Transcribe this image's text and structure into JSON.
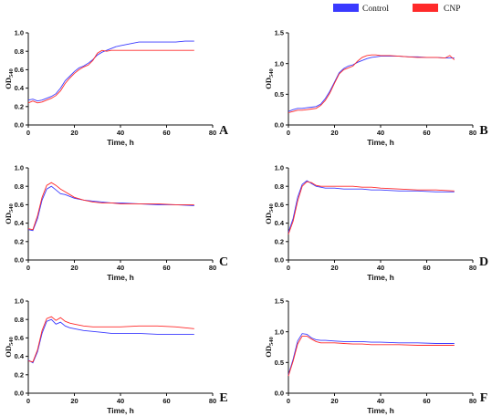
{
  "legend": [
    {
      "name": "Control",
      "color": "#3a3aff"
    },
    {
      "name": "CNP",
      "color": "#ff2a2a"
    }
  ],
  "chart_data": [
    {
      "type": "line",
      "panel": "A",
      "xlabel": "Time, h",
      "ylabel": "OD540",
      "xlim": [
        0,
        80
      ],
      "ylim": [
        0,
        1.0
      ],
      "xticks": [
        0,
        20,
        40,
        60,
        80
      ],
      "yticks": [
        "0.0",
        "0.2",
        "0.4",
        "0.6",
        "0.8",
        "1.0"
      ],
      "series": [
        {
          "name": "Control",
          "color": "#3a3aff",
          "x": [
            0,
            2,
            4,
            6,
            8,
            10,
            12,
            14,
            16,
            18,
            20,
            22,
            24,
            26,
            28,
            30,
            32,
            34,
            36,
            38,
            40,
            44,
            48,
            52,
            56,
            60,
            64,
            68,
            72
          ],
          "y": [
            0.27,
            0.28,
            0.26,
            0.27,
            0.29,
            0.31,
            0.34,
            0.4,
            0.48,
            0.53,
            0.58,
            0.62,
            0.64,
            0.67,
            0.71,
            0.76,
            0.79,
            0.81,
            0.83,
            0.85,
            0.86,
            0.88,
            0.9,
            0.9,
            0.9,
            0.9,
            0.9,
            0.91,
            0.91
          ]
        },
        {
          "name": "CNP",
          "color": "#ff2a2a",
          "x": [
            0,
            2,
            4,
            6,
            8,
            10,
            12,
            14,
            16,
            18,
            20,
            22,
            24,
            26,
            28,
            30,
            32,
            34,
            36,
            38,
            40,
            44,
            48,
            52,
            56,
            60,
            64,
            68,
            72
          ],
          "y": [
            0.24,
            0.26,
            0.24,
            0.25,
            0.27,
            0.29,
            0.32,
            0.37,
            0.45,
            0.51,
            0.56,
            0.6,
            0.63,
            0.65,
            0.7,
            0.78,
            0.81,
            0.8,
            0.81,
            0.81,
            0.81,
            0.81,
            0.81,
            0.81,
            0.81,
            0.81,
            0.81,
            0.81,
            0.81
          ]
        }
      ]
    },
    {
      "type": "line",
      "panel": "B",
      "xlabel": "Time, h",
      "ylabel": "OD540",
      "xlim": [
        0,
        80
      ],
      "ylim": [
        0,
        1.5
      ],
      "xticks": [
        0,
        20,
        40,
        60,
        80
      ],
      "yticks": [
        "0.0",
        "0.5",
        "1.0",
        "1.5"
      ],
      "series": [
        {
          "name": "Control",
          "color": "#3a3aff",
          "x": [
            0,
            2,
            4,
            6,
            8,
            10,
            12,
            14,
            16,
            18,
            20,
            22,
            24,
            26,
            28,
            30,
            32,
            34,
            36,
            38,
            40,
            44,
            48,
            52,
            56,
            60,
            64,
            68,
            70,
            72
          ],
          "y": [
            0.22,
            0.25,
            0.27,
            0.27,
            0.28,
            0.29,
            0.3,
            0.34,
            0.43,
            0.55,
            0.7,
            0.85,
            0.92,
            0.96,
            0.98,
            1.02,
            1.05,
            1.08,
            1.1,
            1.11,
            1.12,
            1.12,
            1.12,
            1.11,
            1.11,
            1.1,
            1.1,
            1.09,
            1.09,
            1.09
          ]
        },
        {
          "name": "CNP",
          "color": "#ff2a2a",
          "x": [
            0,
            2,
            4,
            6,
            8,
            10,
            12,
            14,
            16,
            18,
            20,
            22,
            24,
            26,
            28,
            30,
            32,
            34,
            36,
            38,
            40,
            44,
            48,
            52,
            56,
            60,
            64,
            68,
            70,
            72
          ],
          "y": [
            0.2,
            0.22,
            0.24,
            0.24,
            0.25,
            0.26,
            0.27,
            0.32,
            0.4,
            0.52,
            0.68,
            0.83,
            0.9,
            0.93,
            0.96,
            1.04,
            1.1,
            1.13,
            1.14,
            1.14,
            1.13,
            1.13,
            1.12,
            1.11,
            1.1,
            1.1,
            1.1,
            1.09,
            1.13,
            1.06
          ]
        }
      ]
    },
    {
      "type": "line",
      "panel": "C",
      "xlabel": "Time, h",
      "ylabel": "OD540",
      "xlim": [
        0,
        80
      ],
      "ylim": [
        0,
        1.0
      ],
      "xticks": [
        0,
        20,
        40,
        60,
        80
      ],
      "yticks": [
        "0.0",
        "0.2",
        "0.4",
        "0.6",
        "0.8",
        "1.0"
      ],
      "series": [
        {
          "name": "Control",
          "color": "#3a3aff",
          "x": [
            0,
            2,
            4,
            6,
            8,
            10,
            12,
            14,
            16,
            18,
            20,
            24,
            28,
            32,
            36,
            40,
            48,
            56,
            64,
            72
          ],
          "y": [
            0.33,
            0.32,
            0.45,
            0.65,
            0.77,
            0.8,
            0.76,
            0.72,
            0.71,
            0.69,
            0.67,
            0.65,
            0.64,
            0.63,
            0.62,
            0.62,
            0.61,
            0.6,
            0.6,
            0.59
          ]
        },
        {
          "name": "CNP",
          "color": "#ff2a2a",
          "x": [
            0,
            2,
            4,
            6,
            8,
            10,
            12,
            14,
            16,
            18,
            20,
            24,
            28,
            32,
            36,
            40,
            48,
            56,
            64,
            72
          ],
          "y": [
            0.34,
            0.33,
            0.48,
            0.68,
            0.81,
            0.84,
            0.81,
            0.77,
            0.74,
            0.71,
            0.68,
            0.65,
            0.63,
            0.62,
            0.62,
            0.61,
            0.61,
            0.61,
            0.6,
            0.6
          ]
        }
      ]
    },
    {
      "type": "line",
      "panel": "D",
      "xlabel": "Time, h",
      "ylabel": "OD540",
      "xlim": [
        0,
        80
      ],
      "ylim": [
        0,
        1.0
      ],
      "xticks": [
        0,
        20,
        40,
        60,
        80
      ],
      "yticks": [
        "0.0",
        "0.2",
        "0.4",
        "0.6",
        "0.8",
        "1.0"
      ],
      "series": [
        {
          "name": "Control",
          "color": "#3a3aff",
          "x": [
            0,
            2,
            4,
            6,
            8,
            10,
            12,
            14,
            16,
            20,
            24,
            28,
            32,
            36,
            40,
            48,
            56,
            64,
            72
          ],
          "y": [
            0.3,
            0.45,
            0.68,
            0.82,
            0.86,
            0.83,
            0.8,
            0.79,
            0.78,
            0.78,
            0.77,
            0.77,
            0.77,
            0.76,
            0.76,
            0.75,
            0.75,
            0.74,
            0.74
          ]
        },
        {
          "name": "CNP",
          "color": "#ff2a2a",
          "x": [
            0,
            2,
            4,
            6,
            8,
            10,
            12,
            14,
            16,
            20,
            24,
            28,
            32,
            36,
            40,
            48,
            56,
            64,
            72
          ],
          "y": [
            0.28,
            0.42,
            0.64,
            0.8,
            0.85,
            0.84,
            0.81,
            0.8,
            0.8,
            0.8,
            0.8,
            0.8,
            0.79,
            0.79,
            0.78,
            0.77,
            0.76,
            0.76,
            0.75
          ]
        }
      ]
    },
    {
      "type": "line",
      "panel": "E",
      "xlabel": "Time, h",
      "ylabel": "OD540",
      "xlim": [
        0,
        80
      ],
      "ylim": [
        0,
        1.0
      ],
      "xticks": [
        0,
        20,
        40,
        60,
        80
      ],
      "yticks": [
        "0.0",
        "0.2",
        "0.4",
        "0.6",
        "0.8",
        "1.0"
      ],
      "series": [
        {
          "name": "Control",
          "color": "#3a3aff",
          "x": [
            0,
            2,
            4,
            6,
            8,
            10,
            12,
            14,
            16,
            18,
            20,
            24,
            28,
            32,
            36,
            40,
            48,
            56,
            64,
            72
          ],
          "y": [
            0.36,
            0.33,
            0.45,
            0.65,
            0.78,
            0.8,
            0.75,
            0.77,
            0.73,
            0.71,
            0.7,
            0.68,
            0.67,
            0.66,
            0.65,
            0.65,
            0.65,
            0.64,
            0.64,
            0.64
          ]
        },
        {
          "name": "CNP",
          "color": "#ff2a2a",
          "x": [
            0,
            2,
            4,
            6,
            8,
            10,
            12,
            14,
            16,
            18,
            20,
            24,
            28,
            32,
            36,
            40,
            48,
            56,
            64,
            72
          ],
          "y": [
            0.35,
            0.34,
            0.47,
            0.68,
            0.81,
            0.83,
            0.79,
            0.82,
            0.78,
            0.76,
            0.75,
            0.73,
            0.72,
            0.72,
            0.72,
            0.72,
            0.73,
            0.73,
            0.72,
            0.7
          ]
        }
      ]
    },
    {
      "type": "line",
      "panel": "F",
      "xlabel": "Time, h",
      "ylabel": "OD540",
      "xlim": [
        0,
        80
      ],
      "ylim": [
        0,
        1.5
      ],
      "xticks": [
        0,
        20,
        40,
        60,
        80
      ],
      "yticks": [
        "0.0",
        "0.5",
        "1.0",
        "1.5"
      ],
      "series": [
        {
          "name": "Control",
          "color": "#3a3aff",
          "x": [
            0,
            2,
            4,
            6,
            8,
            10,
            12,
            14,
            16,
            20,
            24,
            28,
            32,
            36,
            40,
            48,
            56,
            64,
            72
          ],
          "y": [
            0.3,
            0.55,
            0.85,
            0.97,
            0.96,
            0.9,
            0.87,
            0.86,
            0.86,
            0.85,
            0.84,
            0.84,
            0.84,
            0.83,
            0.83,
            0.82,
            0.82,
            0.81,
            0.81
          ]
        },
        {
          "name": "CNP",
          "color": "#ff2a2a",
          "x": [
            0,
            2,
            4,
            6,
            8,
            10,
            12,
            14,
            16,
            20,
            24,
            28,
            32,
            36,
            40,
            48,
            56,
            64,
            72
          ],
          "y": [
            0.28,
            0.52,
            0.8,
            0.93,
            0.93,
            0.88,
            0.84,
            0.82,
            0.82,
            0.82,
            0.81,
            0.8,
            0.8,
            0.79,
            0.79,
            0.79,
            0.78,
            0.78,
            0.78
          ]
        }
      ]
    }
  ]
}
